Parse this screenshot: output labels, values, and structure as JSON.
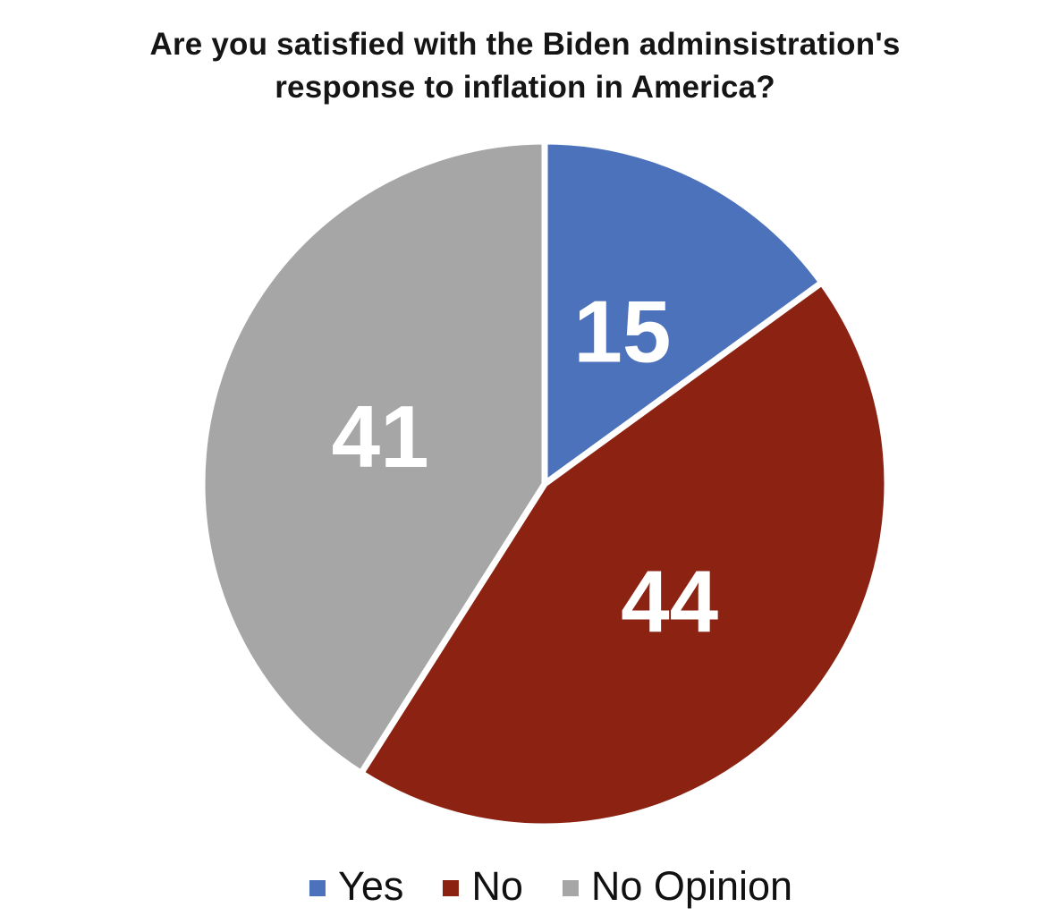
{
  "page": {
    "background_color": "#FFFFFF"
  },
  "title": {
    "line1": "Are you satisfied with the Biden adminsistration's",
    "line2": "response to inflation in America?"
  },
  "chart_data": {
    "type": "pie",
    "title": "Are you satisfied with the Biden adminsistration's response to inflation in America?",
    "categories": [
      "Yes",
      "No",
      "No Opinion"
    ],
    "values": [
      15,
      44,
      41
    ],
    "data_labels": [
      "15",
      "44",
      "41"
    ],
    "colors": [
      "#4C72BC",
      "#8B2212",
      "#A6A6A6"
    ],
    "slice_label_color": "#FFFFFF",
    "slice_border_color": "#FFFFFF",
    "slice_label_radius_fraction": 0.5,
    "start_angle_deg": 0,
    "direction": "clockwise",
    "legend_position": "bottom",
    "text_color": "#151515"
  }
}
